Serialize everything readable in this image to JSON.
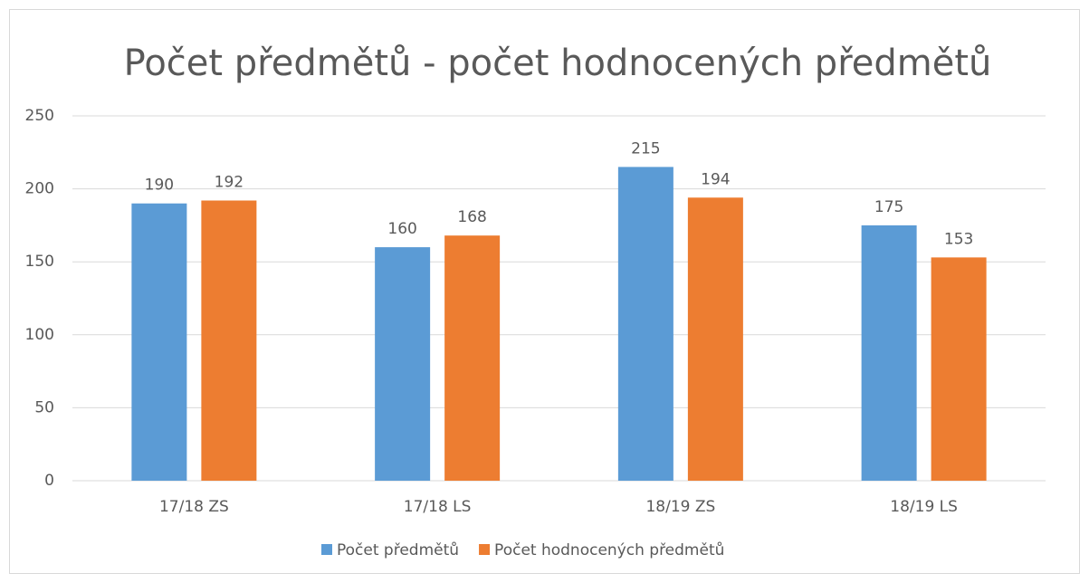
{
  "chart_data": {
    "type": "bar",
    "title": "Počet předmětů - počet hodnocených předmětů",
    "categories": [
      "17/18 ZS",
      "17/18 LS",
      "18/19 ZS",
      "18/19 LS"
    ],
    "series": [
      {
        "name": "Počet předmětů",
        "color": "#5b9bd5",
        "values": [
          190,
          160,
          215,
          175
        ]
      },
      {
        "name": "Počet hodnocených předmětů",
        "color": "#ed7d31",
        "values": [
          192,
          168,
          194,
          153
        ]
      }
    ],
    "ylim": [
      0,
      250
    ],
    "yticks": [
      0,
      50,
      100,
      150,
      200,
      250
    ],
    "grid": true,
    "legend": "bottom"
  }
}
